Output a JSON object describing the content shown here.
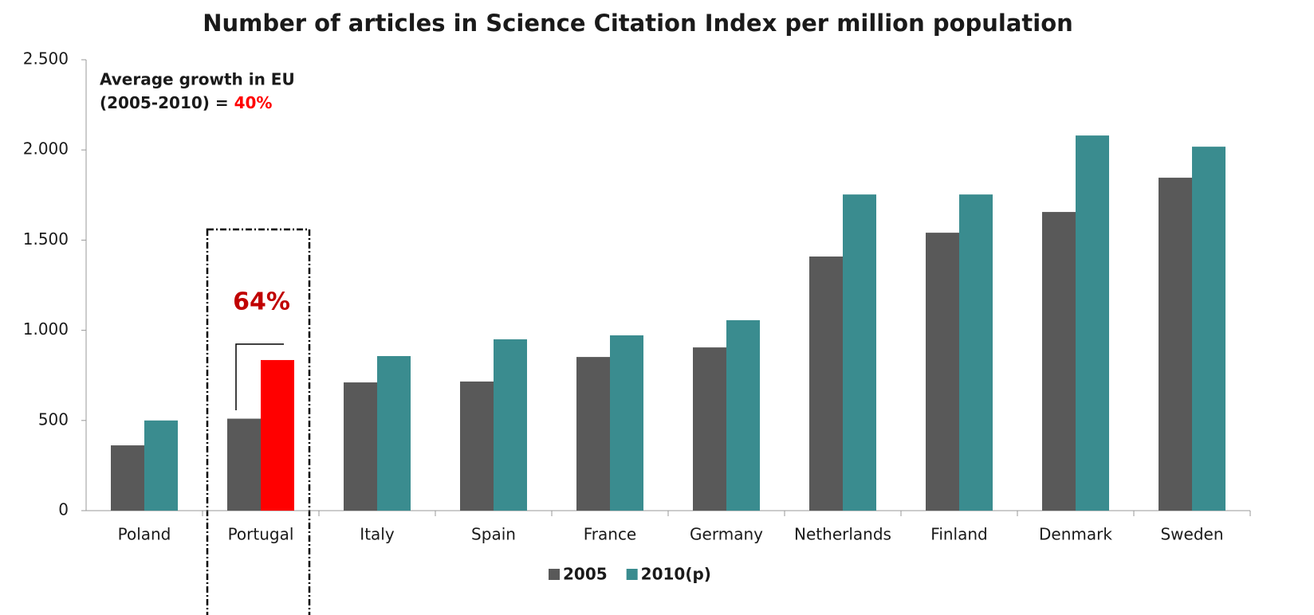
{
  "chart_data": {
    "type": "bar",
    "title": "Number of articles in Science Citation Index per million population",
    "categories": [
      "Poland",
      "Portugal",
      "Italy",
      "Spain",
      "France",
      "Germany",
      "Netherlands",
      "Finland",
      "Denmark",
      "Sweden"
    ],
    "series": [
      {
        "name": "2005",
        "color": "#595959",
        "values": [
          362,
          510,
          711,
          716,
          852,
          905,
          1409,
          1541,
          1656,
          1846
        ]
      },
      {
        "name": "2010(p)",
        "color": "#3a8c8f",
        "values": [
          500,
          835,
          857,
          950,
          972,
          1056,
          1753,
          1753,
          2080,
          2018
        ],
        "highlight": {
          "category": "Portugal",
          "color": "#ff0000"
        }
      }
    ],
    "ylim": [
      0,
      2500
    ],
    "yticks": [
      0,
      500,
      {
        "value": 1000,
        "label": "1.000"
      },
      {
        "value": 1500,
        "label": "1.500"
      },
      {
        "value": 2000,
        "label": "2.000"
      },
      {
        "value": 2500,
        "label": "2.500"
      }
    ],
    "grid": false,
    "legend": "bottom",
    "annotations": {
      "eu_line1": "Average growth in EU",
      "eu_line2": "(2005-2010) = ",
      "eu_value": "40%",
      "portugal_growth": "64%"
    }
  }
}
